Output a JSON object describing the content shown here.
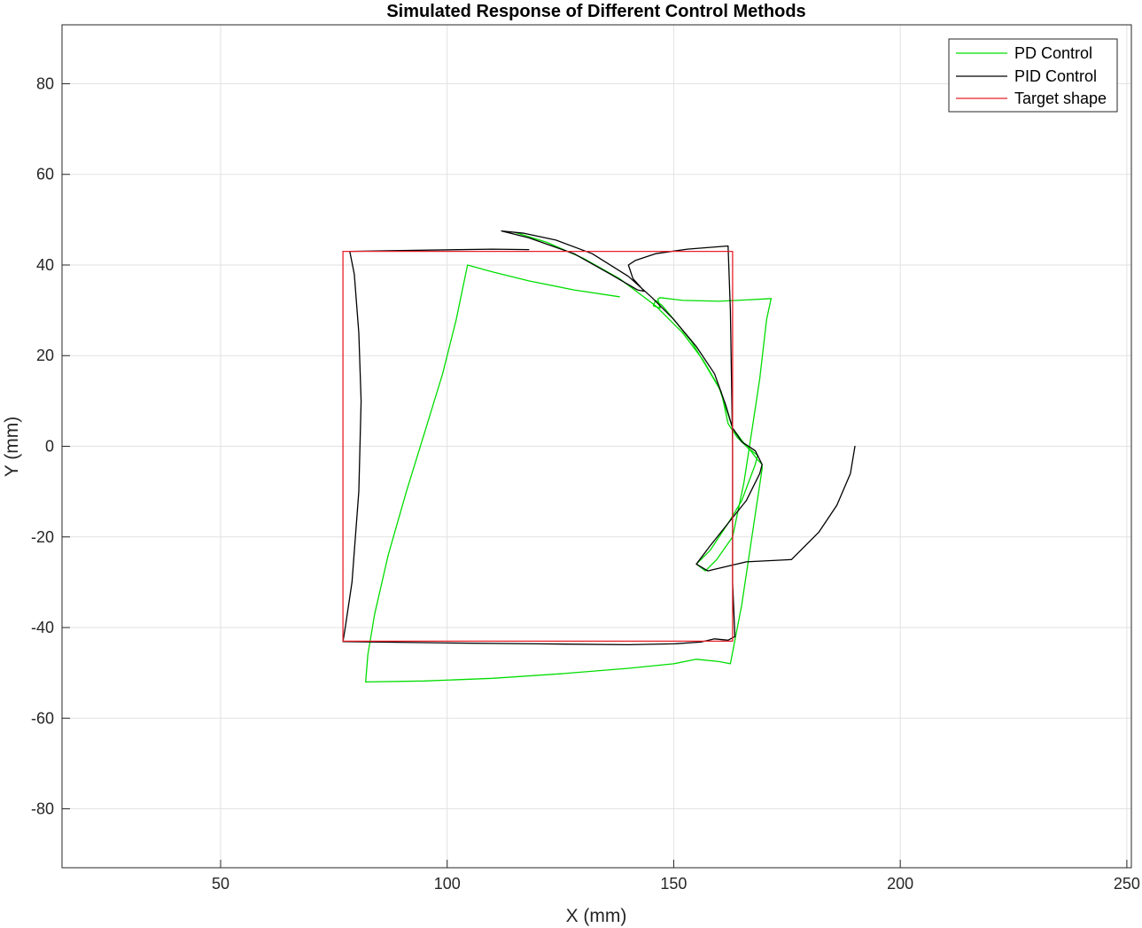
{
  "chart_data": {
    "type": "line",
    "title": "Simulated Response of Different Control Methods",
    "xlabel": "X (mm)",
    "ylabel": "Y (mm)",
    "xlim": [
      15,
      251
    ],
    "ylim": [
      -93,
      93
    ],
    "xticks": [
      50,
      100,
      150,
      200,
      250
    ],
    "yticks": [
      -80,
      -60,
      -40,
      -20,
      0,
      20,
      40,
      60,
      80
    ],
    "grid": true,
    "legend_position": "top-right",
    "series": [
      {
        "name": "PD Control",
        "color": "#00dd00",
        "points": [
          [
            138,
            33
          ],
          [
            128,
            34.5
          ],
          [
            118,
            36.5
          ],
          [
            110,
            38.5
          ],
          [
            104.5,
            40
          ],
          [
            102,
            28
          ],
          [
            99,
            16
          ],
          [
            95,
            3
          ],
          [
            91,
            -10
          ],
          [
            87,
            -24
          ],
          [
            84,
            -37
          ],
          [
            82.5,
            -46
          ],
          [
            82,
            -52
          ],
          [
            95,
            -51.8
          ],
          [
            110,
            -51.2
          ],
          [
            125,
            -50.2
          ],
          [
            140,
            -49
          ],
          [
            150,
            -48
          ],
          [
            155,
            -47
          ],
          [
            160,
            -47.5
          ],
          [
            162.5,
            -48
          ],
          [
            165,
            -35
          ],
          [
            168,
            -15
          ],
          [
            169.5,
            -5
          ],
          [
            169.5,
            -4
          ],
          [
            168.5,
            -3
          ],
          [
            167,
            -1
          ],
          [
            164,
            2
          ],
          [
            162,
            5
          ],
          [
            160.5,
            12
          ],
          [
            157,
            18
          ],
          [
            154,
            23
          ],
          [
            150,
            28
          ],
          [
            147.5,
            31
          ],
          [
            146,
            32.2
          ],
          [
            145.5,
            31
          ],
          [
            147,
            30.5
          ],
          [
            146.5,
            32.5
          ],
          [
            147,
            32.8
          ],
          [
            152,
            32.2
          ],
          [
            160,
            32
          ],
          [
            166,
            32.3
          ],
          [
            170,
            32.5
          ],
          [
            171.5,
            32.6
          ],
          [
            170.5,
            28
          ],
          [
            169,
            15
          ],
          [
            167.5,
            5
          ],
          [
            165.5,
            -8
          ],
          [
            163,
            -20
          ],
          [
            159.5,
            -25
          ],
          [
            157,
            -27.5
          ],
          [
            155,
            -26
          ],
          [
            158,
            -23
          ],
          [
            162,
            -17
          ],
          [
            165,
            -12
          ],
          [
            168,
            -4
          ],
          [
            168.5,
            -2
          ],
          [
            166,
            0
          ],
          [
            163,
            4
          ],
          [
            162,
            7
          ],
          [
            160,
            13
          ],
          [
            156.5,
            19
          ],
          [
            152,
            25
          ],
          [
            146,
            31
          ],
          [
            138,
            37
          ],
          [
            130,
            41.5
          ],
          [
            122,
            45
          ],
          [
            115,
            47.2
          ]
        ]
      },
      {
        "name": "PID Control",
        "color": "#000000",
        "points": [
          [
            190,
            0
          ],
          [
            189,
            -6
          ],
          [
            186,
            -13
          ],
          [
            182,
            -19
          ],
          [
            176,
            -25
          ],
          [
            166,
            -25.5
          ],
          [
            157.5,
            -27.5
          ],
          [
            155,
            -26
          ],
          [
            158,
            -22
          ],
          [
            162,
            -17
          ],
          [
            166,
            -12
          ],
          [
            169,
            -6
          ],
          [
            169.5,
            -4
          ],
          [
            168,
            -1
          ],
          [
            165,
            1
          ],
          [
            163,
            4
          ],
          [
            161.5,
            9
          ],
          [
            159,
            16
          ],
          [
            155,
            22
          ],
          [
            150,
            28
          ],
          [
            145,
            33
          ],
          [
            140,
            37.5
          ],
          [
            132,
            42.5
          ],
          [
            124,
            45.5
          ],
          [
            117,
            47
          ],
          [
            112,
            47.5
          ],
          [
            118,
            46
          ],
          [
            128,
            42.5
          ],
          [
            136,
            38
          ],
          [
            142,
            34.5
          ],
          [
            143.5,
            34.2
          ],
          [
            141,
            37
          ],
          [
            140,
            40
          ],
          [
            141.5,
            41
          ],
          [
            146,
            42.5
          ],
          [
            153,
            43.5
          ],
          [
            162,
            44.2
          ],
          [
            162.5,
            30
          ],
          [
            163,
            0
          ],
          [
            163,
            -30
          ],
          [
            163.5,
            -42
          ],
          [
            162,
            -42.8
          ],
          [
            159,
            -42.5
          ],
          [
            156,
            -43.2
          ],
          [
            150,
            -43.6
          ],
          [
            140,
            -43.8
          ],
          [
            120,
            -43.6
          ],
          [
            100,
            -43.4
          ],
          [
            85,
            -43.2
          ],
          [
            77,
            -43.1
          ],
          [
            77.5,
            -40
          ],
          [
            79,
            -30
          ],
          [
            80.5,
            -10
          ],
          [
            81,
            10
          ],
          [
            80.5,
            25
          ],
          [
            79.5,
            38
          ],
          [
            78.5,
            43
          ],
          [
            90,
            43.2
          ],
          [
            110,
            43.5
          ],
          [
            118,
            43.4
          ]
        ]
      },
      {
        "name": "Target shape",
        "color": "#e8202a",
        "points": [
          [
            77,
            43
          ],
          [
            163,
            43
          ],
          [
            163,
            -43
          ],
          [
            77,
            -43
          ],
          [
            77,
            43
          ]
        ]
      }
    ]
  }
}
